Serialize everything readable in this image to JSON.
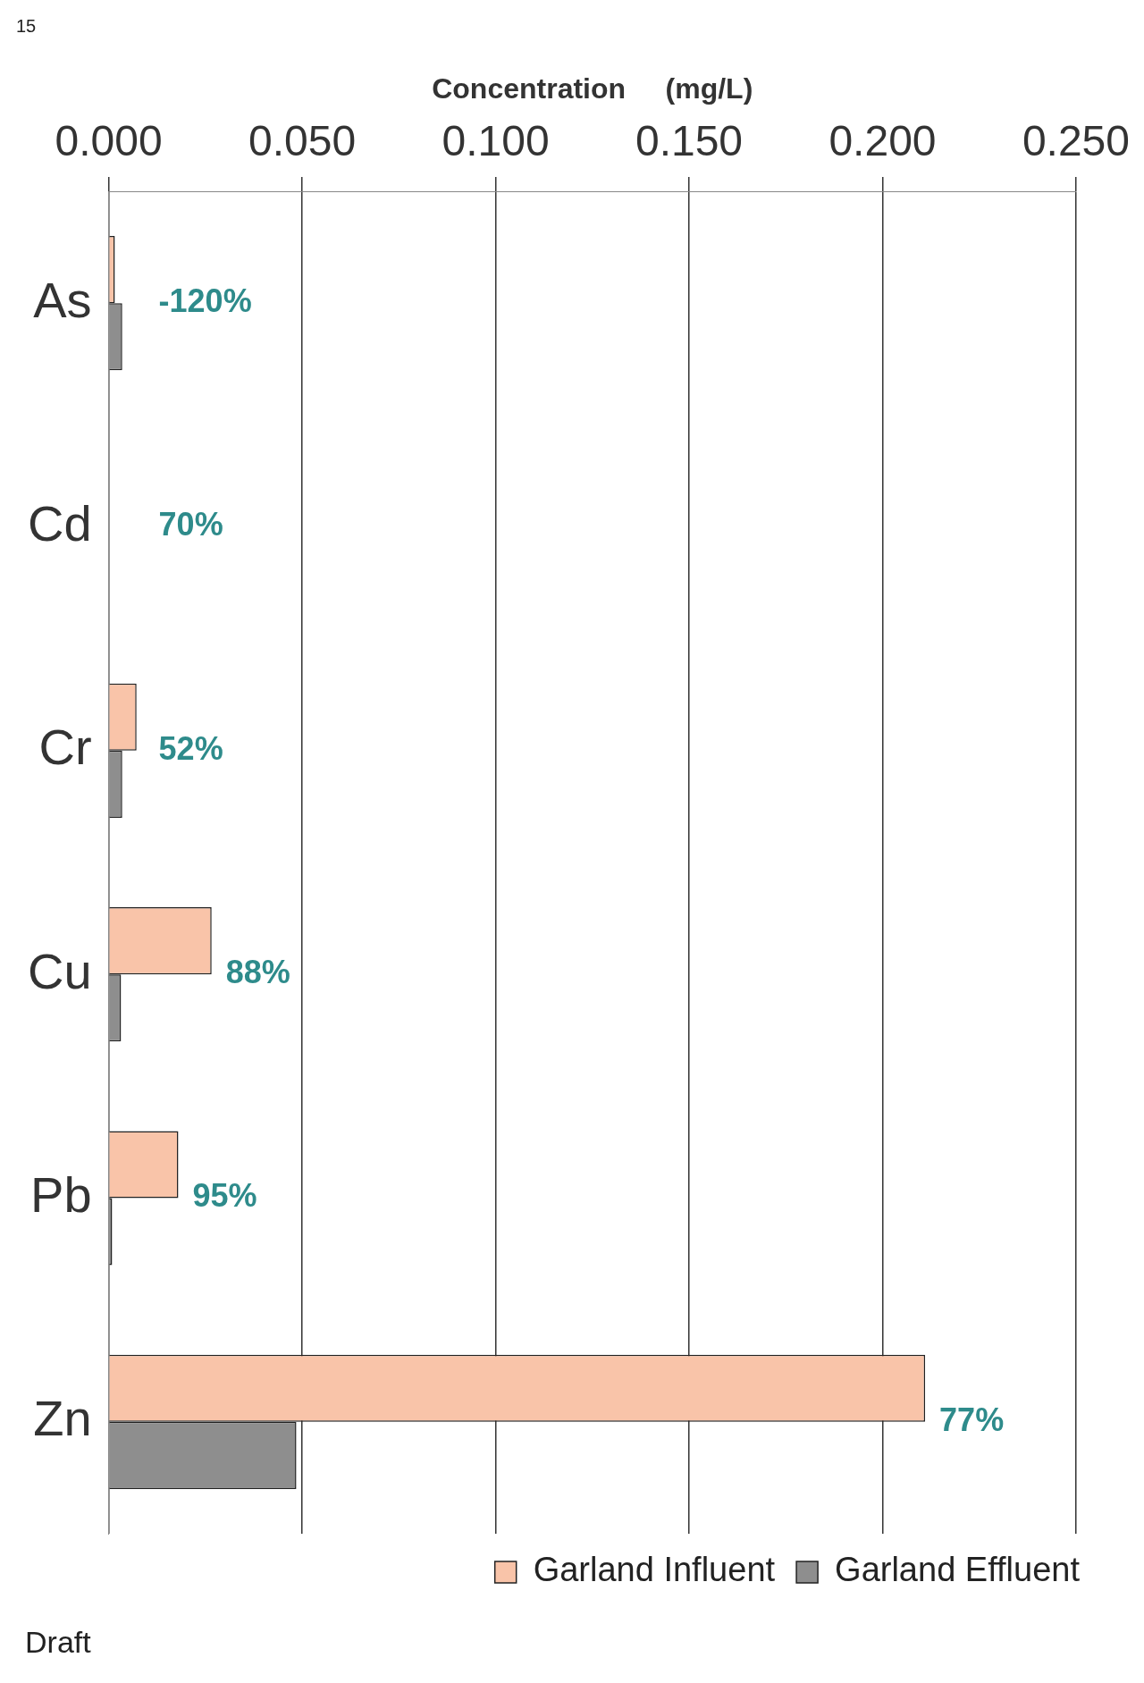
{
  "chart_data": {
    "type": "bar",
    "orientation": "horizontal",
    "xlabel": "Concentration     (mg/L)",
    "categories": [
      "As",
      "Cd",
      "Cr",
      "Cu",
      "Pb",
      "Zn"
    ],
    "series": [
      {
        "name": "Garland Influent",
        "color": "#f9c4a9",
        "values": [
          0.0016,
          null,
          0.0072,
          0.0266,
          0.018,
          0.211
        ]
      },
      {
        "name": "Garland Effluent",
        "color": "#8e8e8e",
        "values": [
          0.0035,
          null,
          0.0035,
          0.0032,
          0.0009,
          0.0485
        ]
      }
    ],
    "xlim": [
      0,
      0.25
    ],
    "xticks": [
      {
        "value": 0,
        "label": "0.000"
      },
      {
        "value": 0.05,
        "label": "0.050"
      },
      {
        "value": 0.1,
        "label": "0.100"
      },
      {
        "value": 0.15,
        "label": "0.150"
      },
      {
        "value": 0.2,
        "label": "0.200"
      },
      {
        "value": 0.25,
        "label": "0.250"
      }
    ],
    "grid": "x",
    "legend": "bottom right",
    "annotations": [
      "Draft",
      "15",
      "-120%",
      "70%",
      "52%",
      "88%",
      "95%",
      "77%"
    ]
  }
}
